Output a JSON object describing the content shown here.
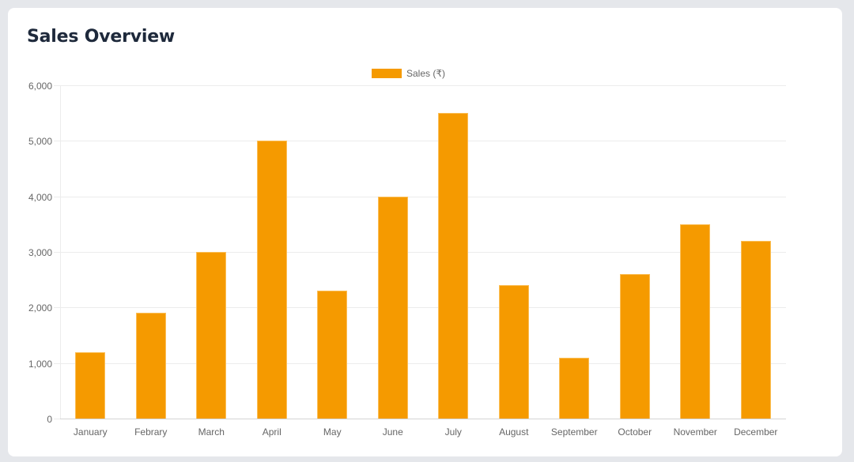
{
  "card": {
    "title": "Sales Overview"
  },
  "legend": {
    "label": "Sales (₹)",
    "color": "#f59a00"
  },
  "y_axis": {
    "ticks": [
      "0",
      "1,000",
      "2,000",
      "3,000",
      "4,000",
      "5,000",
      "6,000"
    ]
  },
  "chart_data": {
    "type": "bar",
    "title": "Sales Overview",
    "xlabel": "",
    "ylabel": "",
    "categories": [
      "January",
      "Febrary",
      "March",
      "April",
      "May",
      "June",
      "July",
      "August",
      "September",
      "October",
      "November",
      "December"
    ],
    "series": [
      {
        "name": "Sales (₹)",
        "color": "#f59a00",
        "values": [
          1200,
          1900,
          3000,
          5000,
          2300,
          4000,
          5500,
          2400,
          1100,
          2600,
          3500,
          3200
        ]
      }
    ],
    "ylim": [
      0,
      6000
    ],
    "yticks": [
      0,
      1000,
      2000,
      3000,
      4000,
      5000,
      6000
    ],
    "grid": true,
    "legend_position": "top"
  }
}
